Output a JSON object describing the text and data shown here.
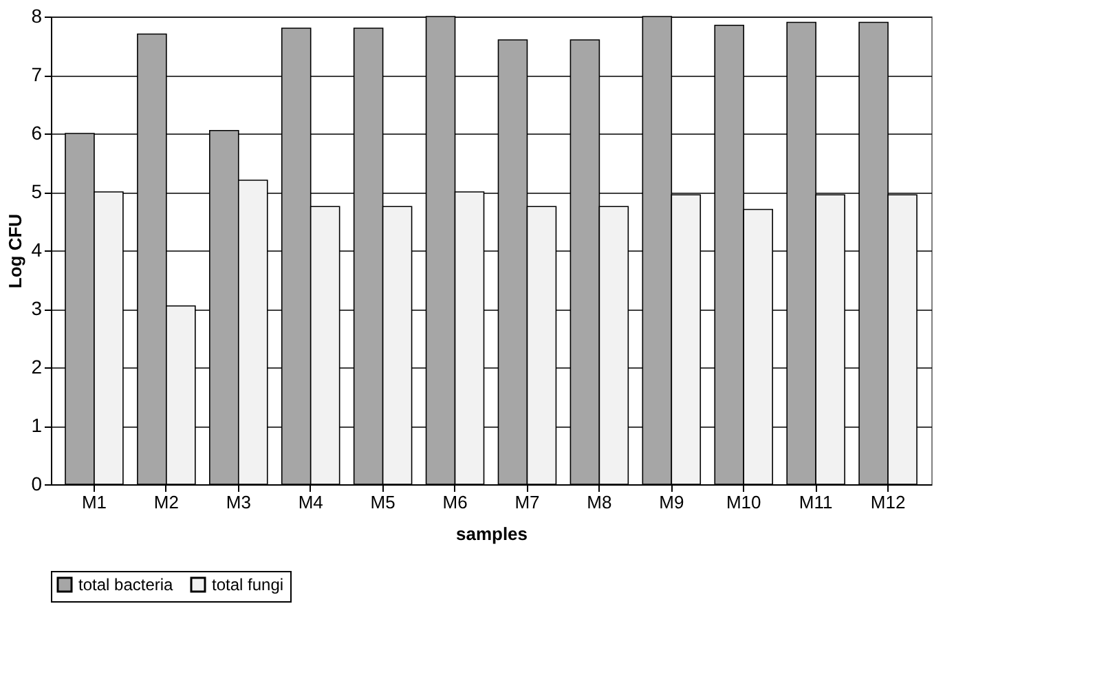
{
  "chart_data": {
    "type": "bar",
    "xlabel": "samples",
    "ylabel": "Log CFU",
    "categories": [
      "M1",
      "M2",
      "M3",
      "M4",
      "M5",
      "M6",
      "M7",
      "M8",
      "M9",
      "M10",
      "M11",
      "M12"
    ],
    "series": [
      {
        "name": "total bacteria",
        "color": "#a6a6a6",
        "values": [
          6.0,
          7.7,
          6.05,
          7.8,
          7.8,
          8.0,
          7.6,
          7.6,
          8.0,
          7.85,
          7.9,
          7.9
        ]
      },
      {
        "name": "total fungi",
        "color": "#f2f2f2",
        "values": [
          5.0,
          3.05,
          5.2,
          4.75,
          4.75,
          5.0,
          4.75,
          4.75,
          4.95,
          4.7,
          4.95,
          4.95
        ]
      }
    ],
    "ylim": [
      0,
      8
    ],
    "yticks": [
      0,
      1,
      2,
      3,
      4,
      5,
      6,
      7,
      8
    ],
    "grid": "y",
    "legend": "bottom"
  }
}
